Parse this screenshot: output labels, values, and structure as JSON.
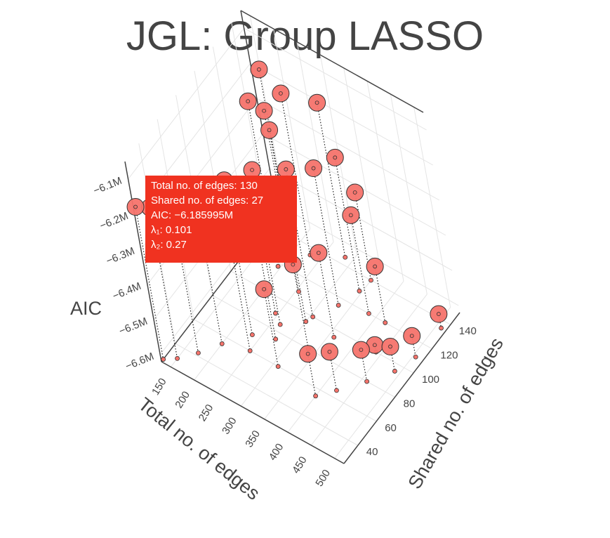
{
  "chart_data": {
    "type": "scatter3d",
    "title": "JGL: Group LASSO",
    "xlabel": "Total no. of edges",
    "ylabel": "Shared no. of edges",
    "zlabel": "AIC",
    "xlim": [
      130,
      520
    ],
    "ylim": [
      25,
      150
    ],
    "zlim": [
      -6.62,
      -6.05
    ],
    "x_ticks": [
      "150",
      "200",
      "250",
      "300",
      "350",
      "400",
      "450",
      "500"
    ],
    "y_ticks": [
      "40",
      "60",
      "80",
      "100",
      "120",
      "140"
    ],
    "z_ticks": [
      "−6.1M",
      "−6.2M",
      "−6.3M",
      "−6.4M",
      "−6.5M",
      "−6.6M"
    ],
    "marker_color": "#f5736b",
    "drop_lines": true,
    "points": [
      {
        "x": 130,
        "y": 27,
        "z": -6.186
      },
      {
        "x": 150,
        "y": 32,
        "z": -6.19
      },
      {
        "x": 175,
        "y": 42,
        "z": -6.2
      },
      {
        "x": 200,
        "y": 55,
        "z": -6.19
      },
      {
        "x": 235,
        "y": 70,
        "z": -6.18
      },
      {
        "x": 265,
        "y": 85,
        "z": -6.18
      },
      {
        "x": 305,
        "y": 100,
        "z": -6.2
      },
      {
        "x": 330,
        "y": 115,
        "z": -6.23
      },
      {
        "x": 345,
        "y": 130,
        "z": -6.24
      },
      {
        "x": 195,
        "y": 118,
        "z": -6.15
      },
      {
        "x": 175,
        "y": 140,
        "z": -6.15
      },
      {
        "x": 230,
        "y": 135,
        "z": -6.16
      },
      {
        "x": 210,
        "y": 125,
        "z": -6.19
      },
      {
        "x": 255,
        "y": 110,
        "z": -6.16
      },
      {
        "x": 285,
        "y": 145,
        "z": -6.18
      },
      {
        "x": 250,
        "y": 60,
        "z": -6.33
      },
      {
        "x": 275,
        "y": 75,
        "z": -6.32
      },
      {
        "x": 300,
        "y": 95,
        "z": -6.25
      },
      {
        "x": 245,
        "y": 90,
        "z": -6.36
      },
      {
        "x": 310,
        "y": 60,
        "z": -6.4
      },
      {
        "x": 335,
        "y": 80,
        "z": -6.38
      },
      {
        "x": 360,
        "y": 95,
        "z": -6.38
      },
      {
        "x": 385,
        "y": 120,
        "z": -6.34
      },
      {
        "x": 350,
        "y": 140,
        "z": -6.37
      },
      {
        "x": 420,
        "y": 120,
        "z": -6.46
      },
      {
        "x": 400,
        "y": 55,
        "z": -6.5
      },
      {
        "x": 425,
        "y": 65,
        "z": -6.51
      },
      {
        "x": 460,
        "y": 80,
        "z": -6.53
      },
      {
        "x": 490,
        "y": 95,
        "z": -6.55
      },
      {
        "x": 505,
        "y": 110,
        "z": -6.56
      },
      {
        "x": 440,
        "y": 100,
        "z": -6.6
      },
      {
        "x": 510,
        "y": 135,
        "z": -6.58
      }
    ],
    "hover": {
      "lines": [
        "Total no. of edges: 130",
        " Shared no. of edges: 27",
        " AIC: −6.185995M",
        " λ₁:  0.101",
        " λ₂:  0.27"
      ],
      "color": "#f03220"
    }
  }
}
